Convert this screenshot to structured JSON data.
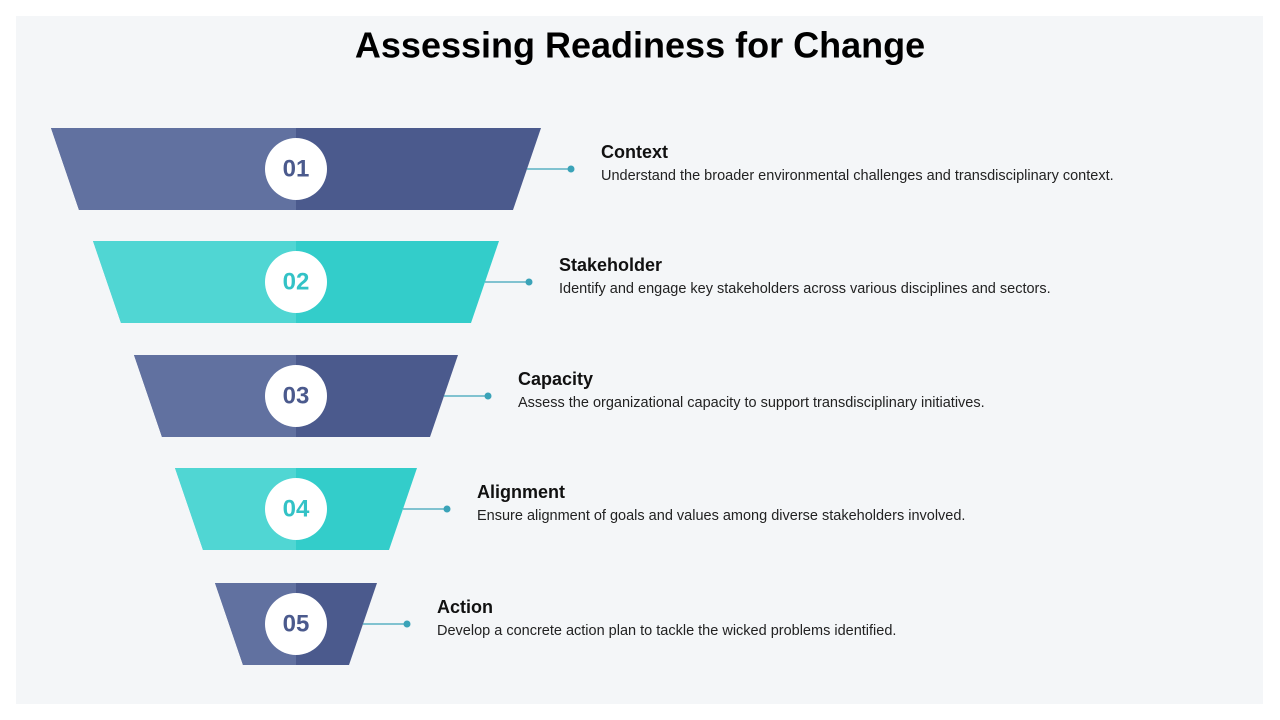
{
  "header": {
    "title": "Assessing Readiness for Change"
  },
  "steps": [
    {
      "number": "01",
      "heading": "Context",
      "description": "Understand the broader environmental challenges and transdisciplinary context."
    },
    {
      "number": "02",
      "heading": "Stakeholder",
      "description": "Identify and engage key stakeholders across various disciplines and sectors."
    },
    {
      "number": "03",
      "heading": "Capacity",
      "description": "Assess the organizational capacity to support transdisciplinary initiatives."
    },
    {
      "number": "04",
      "heading": "Alignment",
      "description": "Ensure alignment of goals and values among diverse stakeholders involved."
    },
    {
      "number": "05",
      "heading": "Action",
      "description": "Develop a concrete action plan to tackle the wicked problems identified."
    }
  ]
}
